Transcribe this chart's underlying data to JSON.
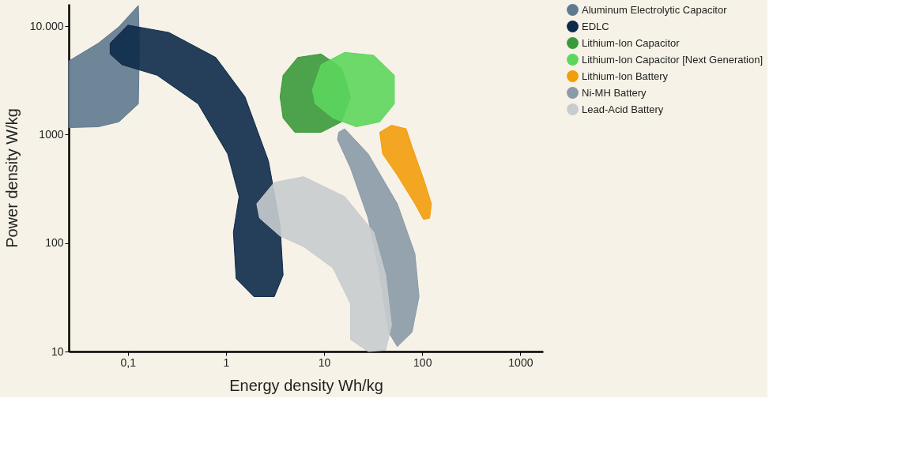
{
  "chart_data": {
    "type": "area",
    "xlabel": "Energy density Wh/kg",
    "ylabel": "Power density W/kg",
    "log": "xy",
    "grid": false,
    "legend": "right",
    "xlim": [
      0.025,
      1700
    ],
    "ylim": [
      10,
      16000
    ],
    "xticks": [
      {
        "value": 0.1,
        "label": "0,1"
      },
      1,
      10,
      100,
      1000
    ],
    "yticks": [
      10,
      100,
      1000,
      {
        "value": 10000,
        "label": "10.000"
      }
    ],
    "series": [
      {
        "name": "Aluminum Electrolytic Capacitor",
        "color": "#5f7a90",
        "x": [
          0.025,
          0.05,
          0.081,
          0.128,
          0.131,
          0.128,
          0.081,
          0.05,
          0.025
        ],
        "values": [
          4760,
          6950,
          9840,
          15500,
          6440,
          1920,
          1310,
          1180,
          1160
        ]
      },
      {
        "name": "EDLC",
        "color": "#0d2a4a",
        "x": [
          0.066,
          0.1,
          0.262,
          0.787,
          1.56,
          2.71,
          3.56,
          3.82,
          3.11,
          1.92,
          1.27,
          1.19,
          1.36,
          1.04,
          0.52,
          0.199,
          0.087,
          0.066
        ],
        "values": [
          6950,
          10200,
          8730,
          5140,
          2230,
          571,
          146,
          50.6,
          32.1,
          32.1,
          46.9,
          126,
          268,
          664,
          1920,
          3520,
          4410,
          5530
        ]
      },
      {
        "name": "Lithium-Ion Capacitor",
        "color": "#3a9a3a",
        "x": [
          3.82,
          5.38,
          9.33,
          15.1,
          18.6,
          15.1,
          9.33,
          5.02,
          3.82,
          3.56
        ],
        "values": [
          3520,
          5140,
          5530,
          4090,
          2230,
          1310,
          1050,
          1050,
          1420,
          2230
        ]
      },
      {
        "name": "Lithium-Ion Capacitor [Next Generation]",
        "color": "#5cd65c",
        "x": [
          7.6,
          9.33,
          16.2,
          32.1,
          52,
          52,
          36.9,
          21.3,
          12.3,
          8.13
        ],
        "values": [
          2590,
          4410,
          5720,
          5370,
          3520,
          1920,
          1310,
          1180,
          1420,
          1920
        ]
      },
      {
        "name": "Lithium-Ion Battery",
        "color": "#f29d0c",
        "x": [
          36.9,
          48.6,
          68.5,
          78.7,
          103,
          124,
          119,
          103,
          84.2,
          55.7,
          39.5
        ],
        "values": [
          1050,
          1220,
          1130,
          773,
          391,
          230,
          170,
          165,
          230,
          422,
          664
        ]
      },
      {
        "name": "Ni-MH Battery",
        "color": "#8a9aa8",
        "x": [
          14.1,
          16.2,
          28.1,
          55.7,
          84.2,
          92.7,
          78.7,
          55.7,
          45.4,
          36.9,
          28.1,
          18.6,
          13.7
        ],
        "values": [
          1050,
          1130,
          664,
          230,
          79.6,
          32.1,
          15.1,
          11.1,
          15.1,
          50.6,
          170,
          491,
          899
        ]
      },
      {
        "name": "Lead-Acid Battery",
        "color": "#c8ccce",
        "x": [
          2.06,
          3.11,
          6.18,
          16.2,
          32.1,
          42.4,
          48.6,
          42.4,
          28.1,
          18.6,
          18.6,
          12.3,
          6.18,
          3.56,
          2.2
        ],
        "values": [
          230,
          362,
          409,
          268,
          126,
          50.6,
          17.5,
          10.3,
          10,
          12.9,
          27.6,
          58.9,
          92.7,
          116,
          170
        ]
      }
    ]
  }
}
